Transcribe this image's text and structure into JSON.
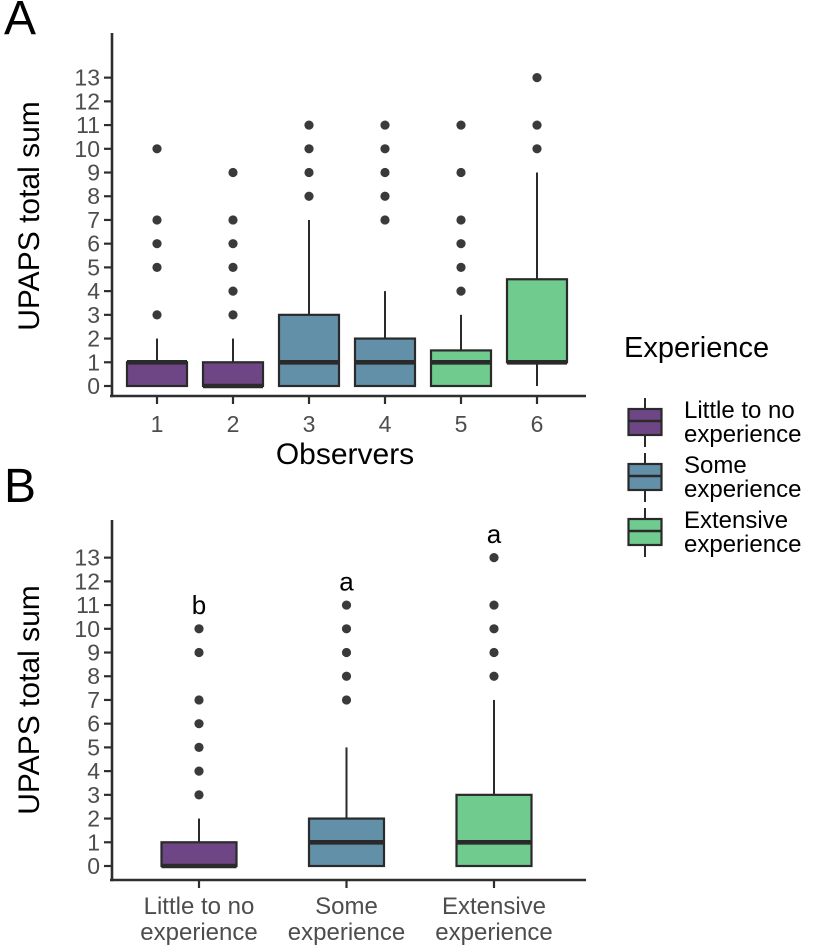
{
  "figure": {
    "panel_a_letter": "A",
    "panel_b_letter": "B"
  },
  "axes": {
    "y_label": "UPAPS total sum",
    "x_label_panel_a": "Observers"
  },
  "colors": {
    "palette": {
      "purple": "#6f4685",
      "blue": "#6190a8",
      "green": "#70cb8e"
    },
    "box_stroke": "#2a2a2a",
    "median_line": "#2a2a2a",
    "outlier_point": "#3a3a3a",
    "axis_line": "#2e2e2e",
    "tick_label": "#4d4d4d",
    "text": "#000000",
    "background": "#ffffff"
  },
  "legend": {
    "title": "Experience",
    "items": [
      {
        "label_line1": "Little to no",
        "label_line2": "experience",
        "color_key": "purple",
        "color": "#6f4685"
      },
      {
        "label_line1": "Some",
        "label_line2": "experience",
        "color_key": "blue",
        "color": "#6190a8"
      },
      {
        "label_line1": "Extensive",
        "label_line2": "experience",
        "color_key": "green",
        "color": "#70cb8e"
      }
    ]
  },
  "chart_data": [
    {
      "type": "boxplot",
      "panel": "A",
      "title": "",
      "xlabel": "Observers",
      "ylabel": "UPAPS total sum",
      "ylim": [
        0,
        13
      ],
      "y_ticks": [
        0,
        1,
        2,
        3,
        4,
        5,
        6,
        7,
        8,
        9,
        10,
        11,
        12,
        13
      ],
      "grid": false,
      "legend_position": "right",
      "categories": [
        "1",
        "2",
        "3",
        "4",
        "5",
        "6"
      ],
      "boxes": [
        {
          "category": "1",
          "tick_lines": [
            "1"
          ],
          "group": "Little to no experience",
          "color_key": "purple",
          "whisker_low": 0,
          "q1": 0,
          "median": 1,
          "q3": 1,
          "whisker_high": 2,
          "outliers": [
            3,
            5,
            6,
            7,
            10
          ]
        },
        {
          "category": "2",
          "tick_lines": [
            "2"
          ],
          "group": "Little to no experience",
          "color_key": "purple",
          "whisker_low": 0,
          "q1": 0,
          "median": 0,
          "q3": 1,
          "whisker_high": 2,
          "outliers": [
            3,
            4,
            5,
            6,
            7,
            9
          ]
        },
        {
          "category": "3",
          "tick_lines": [
            "3"
          ],
          "group": "Some experience",
          "color_key": "blue",
          "whisker_low": 0,
          "q1": 0,
          "median": 1,
          "q3": 3,
          "whisker_high": 7,
          "outliers": [
            8,
            9,
            10,
            11
          ]
        },
        {
          "category": "4",
          "tick_lines": [
            "4"
          ],
          "group": "Some experience",
          "color_key": "blue",
          "whisker_low": 0,
          "q1": 0,
          "median": 1,
          "q3": 2,
          "whisker_high": 4,
          "outliers": [
            7,
            8,
            9,
            10,
            11
          ]
        },
        {
          "category": "5",
          "tick_lines": [
            "5"
          ],
          "group": "Extensive experience",
          "color_key": "green",
          "whisker_low": 0,
          "q1": 0,
          "median": 1,
          "q3": 1.5,
          "whisker_high": 3,
          "outliers": [
            4,
            5,
            6,
            7,
            9,
            11
          ]
        },
        {
          "category": "6",
          "tick_lines": [
            "6"
          ],
          "group": "Extensive experience",
          "color_key": "green",
          "whisker_low": 0,
          "q1": 1,
          "median": 1,
          "q3": 4.5,
          "whisker_high": 9,
          "outliers": [
            10,
            11,
            13
          ]
        }
      ]
    },
    {
      "type": "boxplot",
      "panel": "B",
      "title": "",
      "xlabel": "",
      "ylabel": "UPAPS total sum",
      "ylim": [
        0,
        13
      ],
      "y_ticks": [
        0,
        1,
        2,
        3,
        4,
        5,
        6,
        7,
        8,
        9,
        10,
        11,
        12,
        13
      ],
      "grid": false,
      "categories": [
        "Little to no experience",
        "Some experience",
        "Extensive experience"
      ],
      "boxes": [
        {
          "category": "Little to no experience",
          "tick_lines": [
            "Little to no",
            "experience"
          ],
          "color_key": "purple",
          "whisker_low": 0,
          "q1": 0,
          "median": 0,
          "q3": 1,
          "whisker_high": 2,
          "outliers": [
            3,
            4,
            5,
            6,
            7,
            9,
            10
          ],
          "sig_letter": "b",
          "sig_letter_y": 11
        },
        {
          "category": "Some experience",
          "tick_lines": [
            "Some",
            "experience"
          ],
          "color_key": "blue",
          "whisker_low": 0,
          "q1": 0,
          "median": 1,
          "q3": 2,
          "whisker_high": 5,
          "outliers": [
            7,
            8,
            9,
            10,
            11
          ],
          "sig_letter": "a",
          "sig_letter_y": 12
        },
        {
          "category": "Extensive experience",
          "tick_lines": [
            "Extensive",
            "experience"
          ],
          "color_key": "green",
          "whisker_low": 0,
          "q1": 0,
          "median": 1,
          "q3": 3,
          "whisker_high": 7,
          "outliers": [
            8,
            9,
            10,
            11,
            13
          ],
          "sig_letter": "a",
          "sig_letter_y": 14
        }
      ]
    }
  ]
}
